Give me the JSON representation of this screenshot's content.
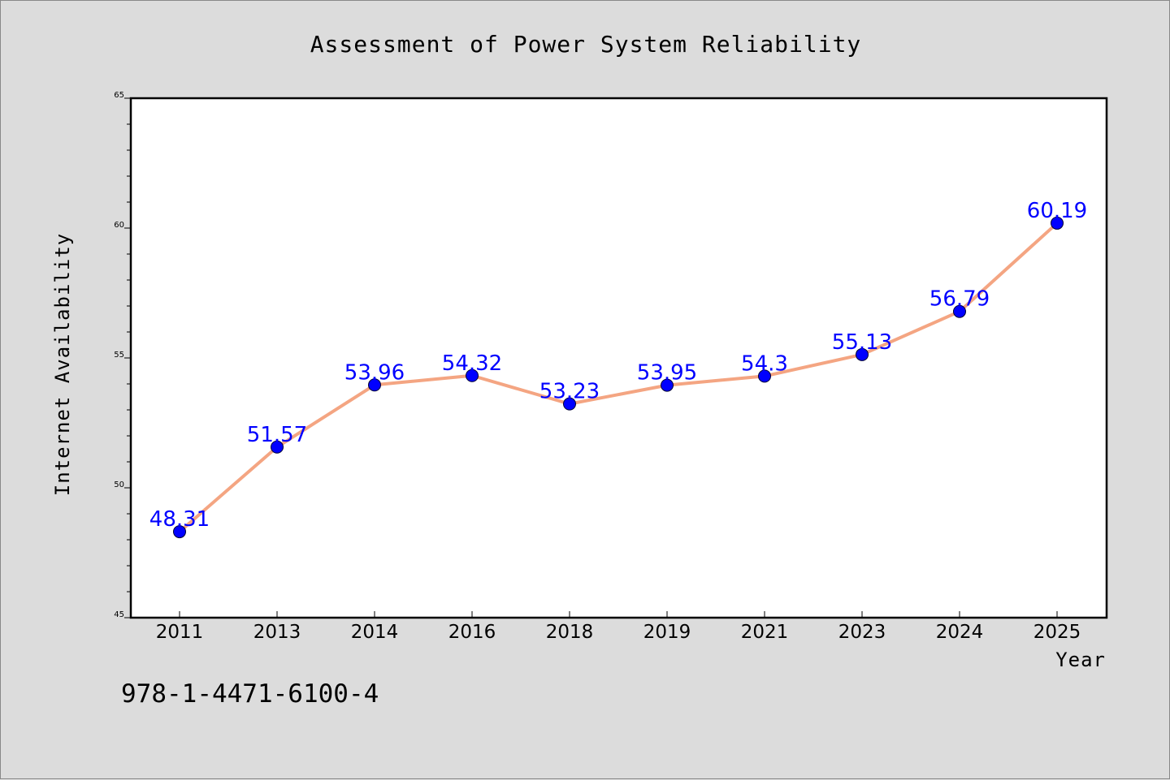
{
  "chart_data": {
    "type": "line",
    "title": "Assessment of Power System Reliability",
    "xlabel": "Year",
    "ylabel": "Internet Availability",
    "categories": [
      "2011",
      "2013",
      "2014",
      "2016",
      "2018",
      "2019",
      "2021",
      "2023",
      "2024",
      "2025"
    ],
    "values": [
      48.31,
      51.57,
      53.96,
      54.32,
      53.23,
      53.95,
      54.3,
      55.13,
      56.79,
      60.19
    ],
    "value_labels": [
      "48.31",
      "51.57",
      "53.96",
      "54.32",
      "53.23",
      "53.95",
      "54.3",
      "55.13",
      "56.79",
      "60.19"
    ],
    "ylim": [
      45,
      65
    ],
    "yticks": [
      45,
      50,
      55,
      60,
      65
    ],
    "grid": false,
    "legend": "none",
    "line_color": "#f4a582",
    "marker_color": "#0000ff",
    "label_color": "#0000ff"
  },
  "annotation": "978-1-4471-6100-4"
}
